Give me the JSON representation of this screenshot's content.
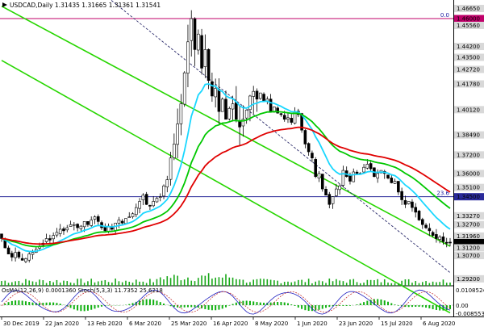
{
  "header": {
    "symbol_line": "USDCAD,Daily  1.31435 1.31665 1.31361 1.31541"
  },
  "indicator": {
    "label": "OsMA(12,26,9) 0.0001360  Stoch(5,3,3) 11.7352 25.6218",
    "scale_top": "0.0108524",
    "scale_zero": "0.00",
    "scale_bottom": "-0.0085533"
  },
  "chart_data": {
    "type": "candlestick",
    "symbol": "USDCAD",
    "timeframe": "Daily",
    "ohlc_last": {
      "open": 1.31435,
      "high": 1.31665,
      "low": 1.31361,
      "close": 1.31541
    },
    "ylim": [
      1.2875,
      1.472
    ],
    "price_labels": [
      "1.46650",
      "1.46000",
      "1.45560",
      "1.44200",
      "1.43500",
      "1.42720",
      "1.41780",
      "1.40120",
      "1.38490",
      "1.37200",
      "1.36000",
      "1.35100",
      "1.34500",
      "1.33270",
      "1.32700",
      "1.31960",
      "1.31541",
      "1.31200",
      "1.30700",
      "1.29200"
    ],
    "date_labels": [
      "30 Dec 2019",
      "22 Jan 2020",
      "13 Feb 2020",
      "6 Mar 2020",
      "25 Mar 2020",
      "16 Apr 2020",
      "8 May 2020",
      "1 Jun 2020",
      "23 Jun 2020",
      "15 Jul 2020",
      "6 Aug 2020"
    ],
    "horizontal_levels": [
      {
        "price": 1.46,
        "label": "1.46000",
        "color": "#c0006a",
        "fib_text": "0.0"
      },
      {
        "price": 1.345,
        "label": "1.34500",
        "color": "#2a2a9a",
        "fib_text": "23.6"
      }
    ],
    "close_series": [
      1.318,
      1.312,
      1.308,
      1.306,
      1.309,
      1.306,
      1.304,
      1.305,
      1.308,
      1.309,
      1.311,
      1.313,
      1.315,
      1.318,
      1.317,
      1.32,
      1.322,
      1.324,
      1.323,
      1.325,
      1.327,
      1.327,
      1.325,
      1.326,
      1.329,
      1.327,
      1.33,
      1.332,
      1.329,
      1.325,
      1.323,
      1.326,
      1.324,
      1.328,
      1.33,
      1.328,
      1.331,
      1.332,
      1.334,
      1.338,
      1.342,
      1.346,
      1.34,
      1.339,
      1.342,
      1.344,
      1.345,
      1.352,
      1.356,
      1.37,
      1.379,
      1.392,
      1.405,
      1.425,
      1.445,
      1.46,
      1.44,
      1.45,
      1.428,
      1.44,
      1.42,
      1.41,
      1.415,
      1.4,
      1.408,
      1.395,
      1.402,
      1.405,
      1.395,
      1.39,
      1.395,
      1.401,
      1.41,
      1.413,
      1.408,
      1.412,
      1.407,
      1.408,
      1.4,
      1.403,
      1.399,
      1.398,
      1.395,
      1.396,
      1.393,
      1.4,
      1.398,
      1.388,
      1.379,
      1.374,
      1.37,
      1.358,
      1.36,
      1.35,
      1.346,
      1.34,
      1.345,
      1.35,
      1.352,
      1.362,
      1.358,
      1.355,
      1.361,
      1.36,
      1.36,
      1.364,
      1.366,
      1.363,
      1.358,
      1.36,
      1.362,
      1.36,
      1.357,
      1.354,
      1.355,
      1.348,
      1.343,
      1.34,
      1.342,
      1.338,
      1.335,
      1.33,
      1.327,
      1.325,
      1.323,
      1.32,
      1.318,
      1.319,
      1.316,
      1.315,
      1.3154
    ],
    "ema_fast_color": "#19d7ff",
    "ema_mid_color": "#00c800",
    "ema_slow_color": "#e00000",
    "channel_color": "#27d600"
  }
}
